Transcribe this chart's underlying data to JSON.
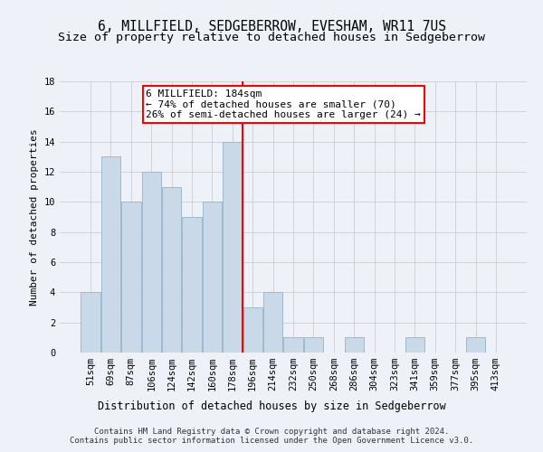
{
  "title": "6, MILLFIELD, SEDGEBERROW, EVESHAM, WR11 7US",
  "subtitle": "Size of property relative to detached houses in Sedgeberrow",
  "xlabel": "Distribution of detached houses by size in Sedgeberrow",
  "ylabel": "Number of detached properties",
  "categories": [
    "51sqm",
    "69sqm",
    "87sqm",
    "106sqm",
    "124sqm",
    "142sqm",
    "160sqm",
    "178sqm",
    "196sqm",
    "214sqm",
    "232sqm",
    "250sqm",
    "268sqm",
    "286sqm",
    "304sqm",
    "323sqm",
    "341sqm",
    "359sqm",
    "377sqm",
    "395sqm",
    "413sqm"
  ],
  "values": [
    4,
    13,
    10,
    12,
    11,
    9,
    10,
    14,
    3,
    4,
    1,
    1,
    0,
    1,
    0,
    0,
    1,
    0,
    0,
    1,
    0
  ],
  "bar_color": "#c9d9e8",
  "bar_edge_color": "#a0b8cc",
  "vline_index": 7,
  "vline_color": "red",
  "annotation_text": "6 MILLFIELD: 184sqm\n← 74% of detached houses are smaller (70)\n26% of semi-detached houses are larger (24) →",
  "annotation_box_color": "white",
  "annotation_box_edgecolor": "red",
  "ylim": [
    0,
    18
  ],
  "yticks": [
    0,
    2,
    4,
    6,
    8,
    10,
    12,
    14,
    16,
    18
  ],
  "background_color": "#eef2f8",
  "footer_text": "Contains HM Land Registry data © Crown copyright and database right 2024.\nContains public sector information licensed under the Open Government Licence v3.0.",
  "title_fontsize": 10.5,
  "subtitle_fontsize": 9.5,
  "xlabel_fontsize": 8.5,
  "ylabel_fontsize": 8,
  "tick_fontsize": 7.5,
  "annotation_fontsize": 8,
  "footer_fontsize": 6.5
}
